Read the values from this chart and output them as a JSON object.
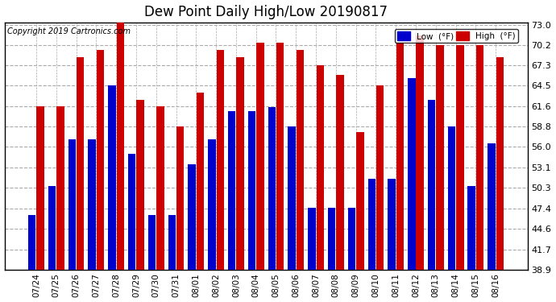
{
  "title": "Dew Point Daily High/Low 20190817",
  "copyright": "Copyright 2019 Cartronics.com",
  "dates": [
    "07/24",
    "07/25",
    "07/26",
    "07/27",
    "07/28",
    "07/29",
    "07/30",
    "07/31",
    "08/01",
    "08/02",
    "08/03",
    "08/04",
    "08/05",
    "08/06",
    "08/07",
    "08/08",
    "08/09",
    "08/10",
    "08/11",
    "08/12",
    "08/13",
    "08/14",
    "08/15",
    "08/16"
  ],
  "low_values": [
    46.5,
    50.5,
    57.0,
    57.0,
    64.5,
    55.0,
    46.5,
    46.5,
    53.5,
    57.0,
    61.0,
    61.0,
    61.5,
    58.8,
    47.5,
    47.5,
    47.5,
    51.5,
    51.5,
    65.5,
    62.5,
    58.8,
    50.5,
    56.5
  ],
  "high_values": [
    61.6,
    61.6,
    68.5,
    69.5,
    73.5,
    62.5,
    61.6,
    58.8,
    63.5,
    69.5,
    68.5,
    70.5,
    70.5,
    69.5,
    67.3,
    66.0,
    58.0,
    64.5,
    70.5,
    71.5,
    70.2,
    70.2,
    70.2,
    68.5
  ],
  "low_color": "#0000cc",
  "high_color": "#cc0000",
  "bg_color": "#ffffff",
  "grid_color": "#aaaaaa",
  "ylim_min": 38.9,
  "ylim_max": 73.0,
  "yticks": [
    38.9,
    41.7,
    44.6,
    47.4,
    50.3,
    53.1,
    56.0,
    58.8,
    61.6,
    64.5,
    67.3,
    70.2,
    73.0
  ]
}
